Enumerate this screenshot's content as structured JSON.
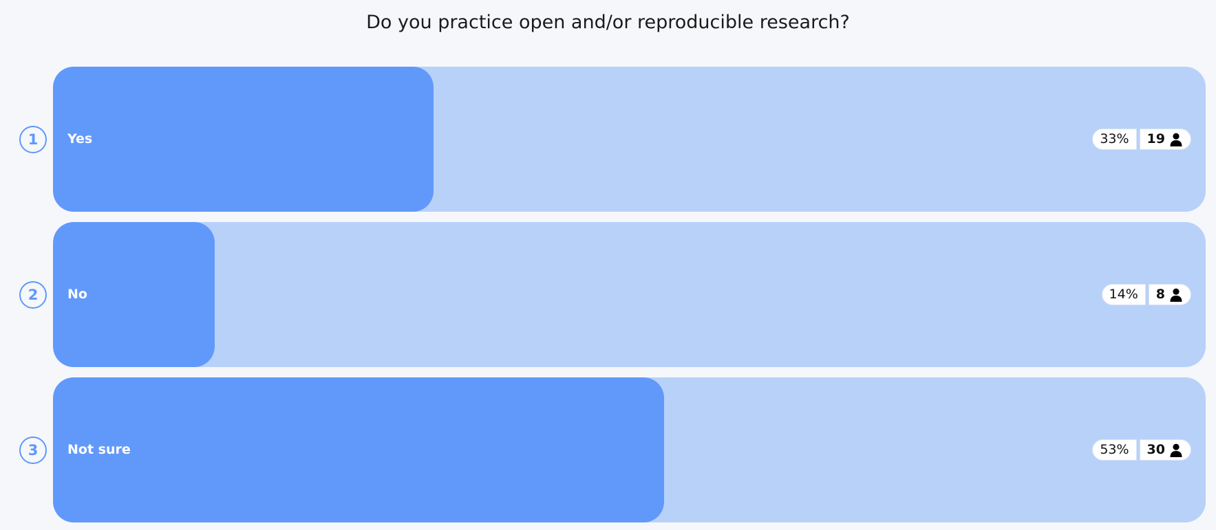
{
  "poll": {
    "question": "Do you practice open and/or reproducible research?",
    "colors": {
      "accent": "#6199fb",
      "track": "#b8d1f9",
      "background": "#f5f7fb"
    },
    "options": [
      {
        "number": "1",
        "label": "Yes",
        "percent": "33%",
        "fraction": 0.33,
        "count": "19",
        "icon": "person-icon"
      },
      {
        "number": "2",
        "label": "No",
        "percent": "14%",
        "fraction": 0.14,
        "count": "8",
        "icon": "person-icon"
      },
      {
        "number": "3",
        "label": "Not sure",
        "percent": "53%",
        "fraction": 0.53,
        "count": "30",
        "icon": "person-icon"
      }
    ]
  }
}
